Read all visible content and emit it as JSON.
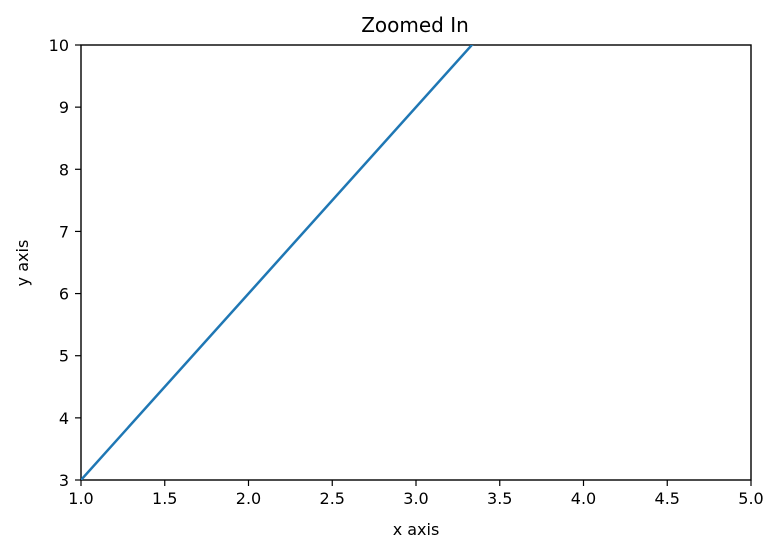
{
  "chart_data": {
    "type": "line",
    "title": "Zoomed In",
    "xlabel": "x axis",
    "ylabel": "y axis",
    "xlim": [
      1.0,
      5.0
    ],
    "ylim": [
      3,
      10
    ],
    "xticks": [
      "1.0",
      "1.5",
      "2.0",
      "2.5",
      "3.0",
      "3.5",
      "4.0",
      "4.5",
      "5.0"
    ],
    "yticks": [
      "3",
      "4",
      "5",
      "6",
      "7",
      "8",
      "9",
      "10"
    ],
    "grid": false,
    "series": [
      {
        "color": "#1f77b4",
        "x": [
          1.0,
          3.3333
        ],
        "y": [
          3.0,
          10.0
        ]
      }
    ]
  }
}
